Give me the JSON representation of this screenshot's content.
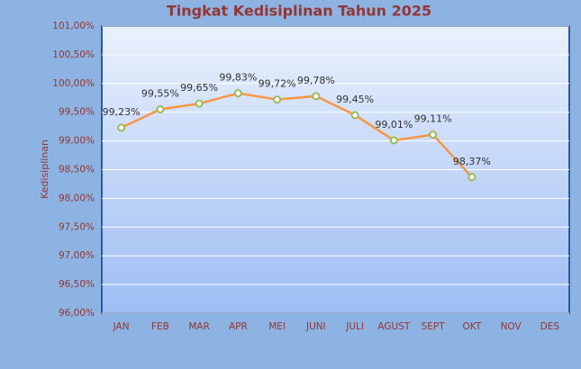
{
  "chart_data": {
    "type": "line",
    "title": "Tingkat Kedisiplinan Tahun 2025",
    "y_label": "Kedisiplinan",
    "categories": [
      "JAN",
      "FEB",
      "MAR",
      "APR",
      "MEI",
      "JUNI",
      "JULI",
      "AGUST",
      "SEPT",
      "OKT",
      "NOV",
      "DES"
    ],
    "series": [
      {
        "name": "Kedisiplinan",
        "color": "#f79646",
        "marker_edge": "#9bbb59",
        "values": [
          99.23,
          99.55,
          99.65,
          99.83,
          99.72,
          99.78,
          99.45,
          99.01,
          99.11,
          98.37,
          null,
          null
        ],
        "value_labels": [
          "99,23%",
          "99,55%",
          "99,65%",
          "99,83%",
          "99,72%",
          "99,78%",
          "99,45%",
          "99,01%",
          "99,11%",
          "98,37%",
          null,
          null
        ]
      }
    ],
    "ylim": [
      96,
      101
    ],
    "yticks": [
      {
        "value": 96,
        "label": "96,00%"
      },
      {
        "value": 96.5,
        "label": "96,50%"
      },
      {
        "value": 97,
        "label": "97,00%"
      },
      {
        "value": 97.5,
        "label": "97,50%"
      },
      {
        "value": 98,
        "label": "98,00%"
      },
      {
        "value": 98.5,
        "label": "98,50%"
      },
      {
        "value": 99,
        "label": "99,00%"
      },
      {
        "value": 99.5,
        "label": "99,50%"
      },
      {
        "value": 100,
        "label": "100,00%"
      },
      {
        "value": 100.5,
        "label": "100,50%"
      },
      {
        "value": 101,
        "label": "101,00%"
      }
    ],
    "grid": true
  }
}
